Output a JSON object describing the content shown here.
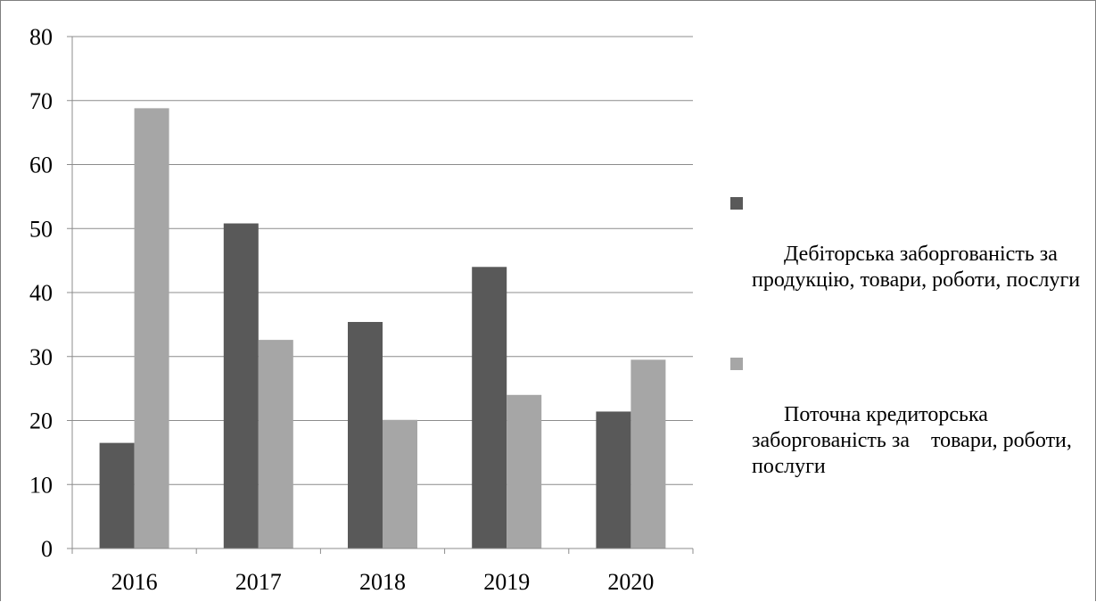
{
  "chart_data": {
    "type": "bar",
    "title": "",
    "xlabel": "",
    "ylabel": "",
    "categories": [
      "2016",
      "2017",
      "2018",
      "2019",
      "2020"
    ],
    "ylim": [
      0,
      80
    ],
    "yticks": [
      "0",
      "10",
      "20",
      "30",
      "40",
      "50",
      "60",
      "70",
      "80"
    ],
    "grid": true,
    "legend_position": "right",
    "series": [
      {
        "name": "Дебіторська заборгованість за продукцію, товари, роботи, послуги",
        "values": [
          16.5,
          50.8,
          35.4,
          44.0,
          21.4
        ],
        "color": "#595959"
      },
      {
        "name": "Поточна кредиторська заборгованість за    товари, роботи, послуги",
        "values": [
          68.8,
          32.6,
          20.1,
          24.0,
          29.5
        ],
        "color": "#a6a6a6"
      }
    ]
  }
}
